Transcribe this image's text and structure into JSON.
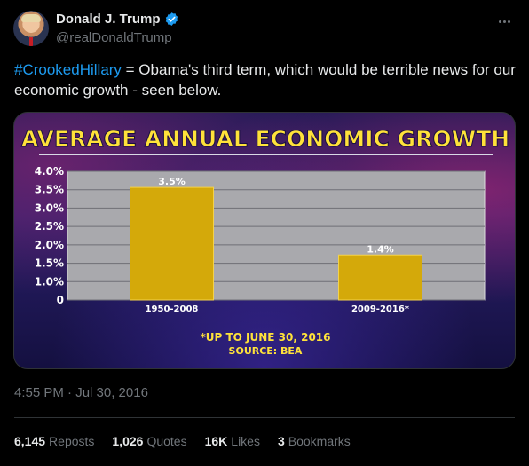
{
  "user": {
    "display_name": "Donald J. Trump",
    "handle": "@realDonaldTrump",
    "verified_color": "#1d9bf0"
  },
  "tweet": {
    "hashtag": "#CrookedHillary",
    "text": " = Obama's third term, which would be terrible news for our economic growth - seen below."
  },
  "media": {
    "chart_data": {
      "type": "bar",
      "title": "AVERAGE ANNUAL ECONOMIC GROWTH",
      "categories": [
        "1950-2008",
        "2009-2016*"
      ],
      "values": [
        3.5,
        1.4
      ],
      "value_labels": [
        "3.5%",
        "1.4%"
      ],
      "yticks": [
        "4.0%",
        "3.5%",
        "3.0%",
        "2.5%",
        "2.0%",
        "1.5%",
        "1.0%",
        "0"
      ],
      "ylim": [
        0,
        4.0
      ],
      "grid": true,
      "bar_color": "#d4a90a",
      "footnote_1": "*UP TO JUNE 30, 2016",
      "footnote_2": "SOURCE: BEA"
    }
  },
  "meta": {
    "timestamp": "4:55 PM · Jul 30, 2016"
  },
  "stats": {
    "reposts_num": "6,145",
    "reposts_label": "Reposts",
    "quotes_num": "1,026",
    "quotes_label": "Quotes",
    "likes_num": "16K",
    "likes_label": "Likes",
    "bookmarks_num": "3",
    "bookmarks_label": "Bookmarks"
  }
}
